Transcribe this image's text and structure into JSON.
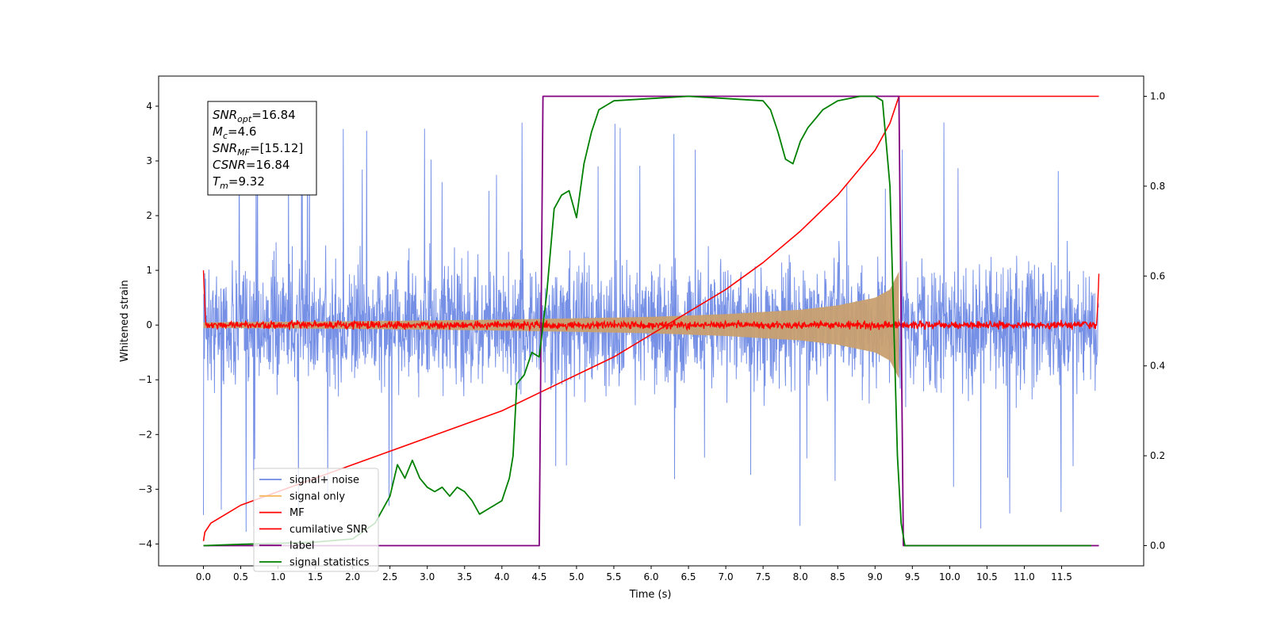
{
  "chart_data": {
    "type": "line",
    "xlabel": "Time (s)",
    "ylabel": "Whitened strain",
    "xlim": [
      -0.6,
      12.6
    ],
    "ylim": [
      -4.4,
      4.55
    ],
    "y2lim": [
      -0.045,
      1.045
    ],
    "x_ticks": [
      "0.0",
      "0.5",
      "1.0",
      "1.5",
      "2.0",
      "2.5",
      "3.0",
      "3.5",
      "4.0",
      "4.5",
      "5.0",
      "5.5",
      "6.0",
      "6.5",
      "7.0",
      "7.5",
      "8.0",
      "8.5",
      "9.0",
      "9.5",
      "10.0",
      "10.5",
      "11.0",
      "11.5"
    ],
    "y_ticks": [
      "−4",
      "−3",
      "−2",
      "−1",
      "0",
      "1",
      "2",
      "3",
      "4"
    ],
    "y2_ticks": [
      "0.0",
      "0.2",
      "0.4",
      "0.6",
      "0.8",
      "1.0"
    ],
    "annotation": {
      "lines": [
        {
          "base": "SNR",
          "sub": "opt",
          "rest": "=16.84"
        },
        {
          "base": "M",
          "sub": "c",
          "rest": "=4.6"
        },
        {
          "base": "SNR",
          "sub": "MF",
          "rest": "=[15.12]"
        },
        {
          "base": "CSNR",
          "sub": "",
          "rest": "=16.84"
        },
        {
          "base": "T",
          "sub": "m",
          "rest": "=9.32"
        }
      ]
    },
    "legend": {
      "placement": "lower-left",
      "entries": [
        {
          "label": "signal+ noise",
          "color": "#6f8ae5"
        },
        {
          "label": "signal only",
          "color": "#f5b860"
        },
        {
          "label": "MF",
          "color": "#ff0000"
        },
        {
          "label": "cumilative SNR",
          "color": "#ff0000"
        },
        {
          "label": "label",
          "color": "#800080"
        },
        {
          "label": "signal statistics",
          "color": "#008000"
        }
      ]
    },
    "series": [
      {
        "name": "signal+ noise",
        "axis": "left",
        "style": "noise-band",
        "x_range": [
          0.0,
          12.0
        ],
        "typical_range": [
          -1.7,
          1.7
        ],
        "extremes": [
          -3.85,
          4.15
        ],
        "color": "#6f8ae5"
      },
      {
        "name": "signal only",
        "axis": "left",
        "style": "chirp-envelope",
        "x_range": [
          0.0,
          9.32
        ],
        "amplitude": [
          [
            0.0,
            0.05
          ],
          [
            2.0,
            0.07
          ],
          [
            4.0,
            0.1
          ],
          [
            6.0,
            0.15
          ],
          [
            7.0,
            0.2
          ],
          [
            8.0,
            0.28
          ],
          [
            8.5,
            0.36
          ],
          [
            9.0,
            0.5
          ],
          [
            9.2,
            0.65
          ],
          [
            9.32,
            0.98
          ]
        ],
        "color": "#c8a070"
      },
      {
        "name": "MF",
        "axis": "left",
        "style": "matched-filter",
        "x_range": [
          0.0,
          12.0
        ],
        "edge_value": 1.0,
        "noise_level": 0.08,
        "color": "#ff0000"
      },
      {
        "name": "cumilative SNR",
        "axis": "right",
        "x": [
          0.0,
          0.02,
          0.1,
          0.3,
          0.5,
          1.0,
          1.5,
          2.0,
          2.5,
          3.0,
          3.5,
          4.0,
          4.5,
          5.0,
          5.5,
          6.0,
          6.5,
          7.0,
          7.5,
          8.0,
          8.5,
          8.8,
          9.0,
          9.1,
          9.2,
          9.25,
          9.3,
          9.32,
          12.0
        ],
        "values": [
          0.01,
          0.03,
          0.05,
          0.07,
          0.09,
          0.12,
          0.15,
          0.18,
          0.21,
          0.24,
          0.27,
          0.3,
          0.34,
          0.38,
          0.42,
          0.47,
          0.52,
          0.57,
          0.63,
          0.7,
          0.78,
          0.84,
          0.88,
          0.91,
          0.94,
          0.965,
          0.99,
          1.0,
          1.0
        ],
        "color": "#ff0000"
      },
      {
        "name": "label",
        "axis": "right",
        "x": [
          0.0,
          4.5,
          4.55,
          9.32,
          9.38,
          12.0
        ],
        "values": [
          0.0,
          0.0,
          1.0,
          1.0,
          0.0,
          0.0
        ],
        "color": "#800080"
      },
      {
        "name": "signal statistics",
        "axis": "right",
        "x": [
          0.0,
          0.5,
          1.0,
          1.5,
          2.0,
          2.3,
          2.5,
          2.6,
          2.7,
          2.8,
          2.9,
          3.0,
          3.1,
          3.2,
          3.3,
          3.4,
          3.5,
          3.6,
          3.7,
          3.8,
          3.9,
          4.0,
          4.1,
          4.15,
          4.2,
          4.3,
          4.4,
          4.5,
          4.6,
          4.7,
          4.8,
          4.9,
          5.0,
          5.1,
          5.2,
          5.3,
          5.5,
          6.0,
          6.5,
          7.0,
          7.5,
          7.6,
          7.7,
          7.8,
          7.9,
          8.0,
          8.1,
          8.2,
          8.3,
          8.5,
          8.8,
          9.0,
          9.1,
          9.2,
          9.25,
          9.3,
          9.35,
          9.4,
          9.5,
          10.0,
          11.0,
          11.9
        ],
        "values": [
          0.0,
          0.003,
          0.005,
          0.008,
          0.015,
          0.05,
          0.11,
          0.18,
          0.15,
          0.19,
          0.15,
          0.13,
          0.12,
          0.13,
          0.11,
          0.13,
          0.12,
          0.1,
          0.07,
          0.08,
          0.09,
          0.1,
          0.15,
          0.2,
          0.36,
          0.38,
          0.43,
          0.42,
          0.56,
          0.75,
          0.78,
          0.79,
          0.73,
          0.85,
          0.92,
          0.97,
          0.99,
          0.995,
          1.0,
          0.995,
          0.99,
          0.97,
          0.92,
          0.86,
          0.85,
          0.9,
          0.93,
          0.95,
          0.97,
          0.99,
          1.0,
          1.0,
          0.99,
          0.8,
          0.5,
          0.2,
          0.05,
          0.0,
          0.0,
          0.0,
          0.0,
          0.0
        ],
        "color": "#008000"
      }
    ]
  }
}
